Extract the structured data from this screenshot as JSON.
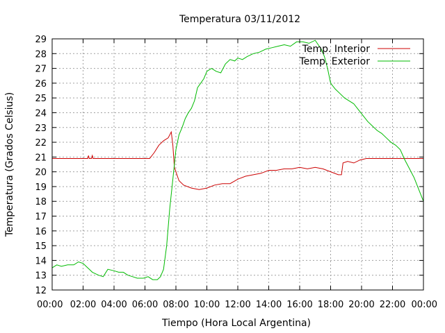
{
  "chart_data": {
    "type": "line",
    "title": "Temperatura 03/11/2012",
    "xlabel": "Tiempo (Hora Local Argentina)",
    "ylabel": "Temperatura (Grados Celsius)",
    "xlim": [
      0,
      24
    ],
    "ylim": [
      12,
      29
    ],
    "x_tick_labels": [
      "00:00",
      "02:00",
      "04:00",
      "06:00",
      "08:00",
      "10:00",
      "12:00",
      "14:00",
      "16:00",
      "18:00",
      "20:00",
      "22:00",
      "00:00"
    ],
    "y_ticks": [
      12,
      13,
      14,
      15,
      16,
      17,
      18,
      19,
      20,
      21,
      22,
      23,
      24,
      25,
      26,
      27,
      28,
      29
    ],
    "grid": true,
    "legend_position": "top-right",
    "series": [
      {
        "name": "Temp. Interior",
        "color": "#cc0000",
        "points": [
          [
            0,
            20.9
          ],
          [
            2.3,
            20.9
          ],
          [
            2.35,
            21.1
          ],
          [
            2.4,
            20.9
          ],
          [
            2.55,
            20.9
          ],
          [
            2.6,
            21.1
          ],
          [
            2.65,
            20.9
          ],
          [
            6.3,
            20.9
          ],
          [
            6.6,
            21.3
          ],
          [
            6.9,
            21.8
          ],
          [
            7.2,
            22.1
          ],
          [
            7.5,
            22.3
          ],
          [
            7.7,
            22.7
          ],
          [
            7.8,
            21.8
          ],
          [
            7.9,
            20.3
          ],
          [
            8.2,
            19.4
          ],
          [
            8.5,
            19.1
          ],
          [
            9.0,
            18.9
          ],
          [
            9.5,
            18.8
          ],
          [
            10.0,
            18.9
          ],
          [
            10.5,
            19.1
          ],
          [
            11.0,
            19.2
          ],
          [
            11.5,
            19.2
          ],
          [
            12.0,
            19.5
          ],
          [
            12.5,
            19.7
          ],
          [
            13.0,
            19.8
          ],
          [
            13.5,
            19.9
          ],
          [
            14.0,
            20.1
          ],
          [
            14.5,
            20.1
          ],
          [
            15.0,
            20.2
          ],
          [
            15.5,
            20.2
          ],
          [
            16.0,
            20.3
          ],
          [
            16.5,
            20.2
          ],
          [
            17.0,
            20.3
          ],
          [
            17.5,
            20.2
          ],
          [
            18.0,
            20.0
          ],
          [
            18.5,
            19.8
          ],
          [
            18.7,
            19.8
          ],
          [
            18.8,
            20.6
          ],
          [
            19.1,
            20.7
          ],
          [
            19.5,
            20.6
          ],
          [
            19.9,
            20.8
          ],
          [
            20.3,
            20.9
          ],
          [
            24,
            20.9
          ]
        ]
      },
      {
        "name": "Temp. Exterior",
        "color": "#00bb00",
        "points": [
          [
            0,
            13.5
          ],
          [
            0.3,
            13.7
          ],
          [
            0.6,
            13.6
          ],
          [
            1.0,
            13.7
          ],
          [
            1.4,
            13.7
          ],
          [
            1.7,
            13.9
          ],
          [
            2.0,
            13.8
          ],
          [
            2.3,
            13.5
          ],
          [
            2.6,
            13.2
          ],
          [
            3.0,
            13.0
          ],
          [
            3.3,
            12.9
          ],
          [
            3.6,
            13.4
          ],
          [
            4.0,
            13.3
          ],
          [
            4.3,
            13.2
          ],
          [
            4.6,
            13.2
          ],
          [
            4.9,
            13.0
          ],
          [
            5.2,
            12.9
          ],
          [
            5.5,
            12.8
          ],
          [
            5.9,
            12.8
          ],
          [
            6.2,
            12.9
          ],
          [
            6.5,
            12.7
          ],
          [
            6.8,
            12.7
          ],
          [
            7.0,
            12.9
          ],
          [
            7.2,
            13.4
          ],
          [
            7.4,
            15.0
          ],
          [
            7.6,
            17.5
          ],
          [
            7.8,
            19.5
          ],
          [
            8.0,
            21.5
          ],
          [
            8.2,
            22.5
          ],
          [
            8.4,
            23.0
          ],
          [
            8.6,
            23.6
          ],
          [
            8.8,
            24.0
          ],
          [
            9.0,
            24.3
          ],
          [
            9.2,
            24.8
          ],
          [
            9.4,
            25.7
          ],
          [
            9.6,
            26.0
          ],
          [
            9.8,
            26.3
          ],
          [
            10.0,
            26.8
          ],
          [
            10.3,
            27.0
          ],
          [
            10.6,
            26.8
          ],
          [
            10.9,
            26.7
          ],
          [
            11.2,
            27.3
          ],
          [
            11.5,
            27.6
          ],
          [
            11.8,
            27.5
          ],
          [
            12.0,
            27.7
          ],
          [
            12.3,
            27.6
          ],
          [
            12.6,
            27.8
          ],
          [
            13.0,
            28.0
          ],
          [
            13.4,
            28.1
          ],
          [
            13.8,
            28.3
          ],
          [
            14.2,
            28.4
          ],
          [
            14.6,
            28.5
          ],
          [
            15.0,
            28.6
          ],
          [
            15.4,
            28.5
          ],
          [
            15.8,
            28.8
          ],
          [
            16.2,
            28.8
          ],
          [
            16.6,
            28.7
          ],
          [
            17.0,
            28.9
          ],
          [
            17.2,
            28.6
          ],
          [
            17.4,
            28.3
          ],
          [
            17.6,
            27.8
          ],
          [
            17.8,
            27.0
          ],
          [
            18.0,
            26.0
          ],
          [
            18.3,
            25.6
          ],
          [
            18.6,
            25.3
          ],
          [
            18.9,
            25.0
          ],
          [
            19.2,
            24.8
          ],
          [
            19.5,
            24.6
          ],
          [
            19.8,
            24.2
          ],
          [
            20.1,
            23.8
          ],
          [
            20.4,
            23.4
          ],
          [
            20.7,
            23.1
          ],
          [
            21.0,
            22.8
          ],
          [
            21.3,
            22.6
          ],
          [
            21.6,
            22.3
          ],
          [
            21.9,
            22.0
          ],
          [
            22.2,
            21.8
          ],
          [
            22.5,
            21.5
          ],
          [
            22.8,
            20.8
          ],
          [
            23.1,
            20.2
          ],
          [
            23.4,
            19.6
          ],
          [
            23.7,
            18.8
          ],
          [
            24,
            18.0
          ]
        ]
      }
    ]
  }
}
